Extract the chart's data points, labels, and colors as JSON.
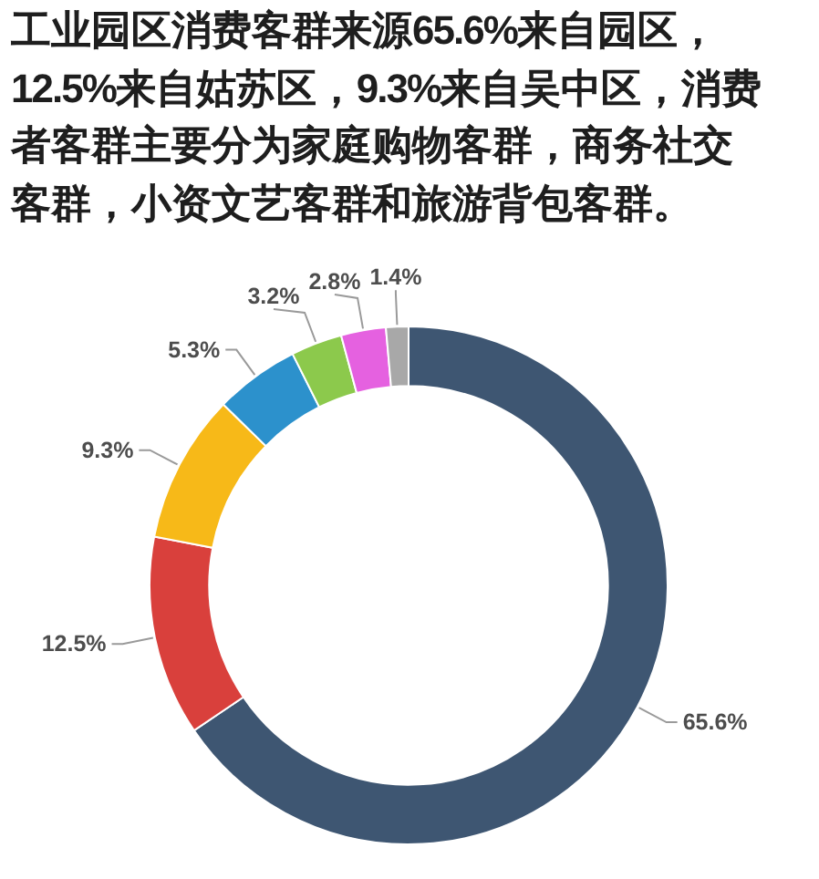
{
  "chart_data": {
    "type": "donut",
    "title": "工业园区消费客群来源65.6%来自园区，12.5%来自姑苏区，9.3%来自吴中区，消费者客群主要分为家庭购物客群，商务社交客群，小资文艺客群和旅游背包客群。",
    "categories": [
      null,
      null,
      null,
      null,
      null,
      null,
      null
    ],
    "values": [
      65.6,
      12.5,
      9.3,
      5.3,
      3.2,
      2.8,
      1.4
    ],
    "colors": [
      "#3e5672",
      "#d9403c",
      "#f7b918",
      "#2c91cc",
      "#8cc94c",
      "#e561e0",
      "#a8a8a8"
    ],
    "value_labels": [
      "65.6%",
      "12.5%",
      "9.3%",
      "5.3%",
      "3.2%",
      "2.8%",
      "1.4%"
    ]
  }
}
